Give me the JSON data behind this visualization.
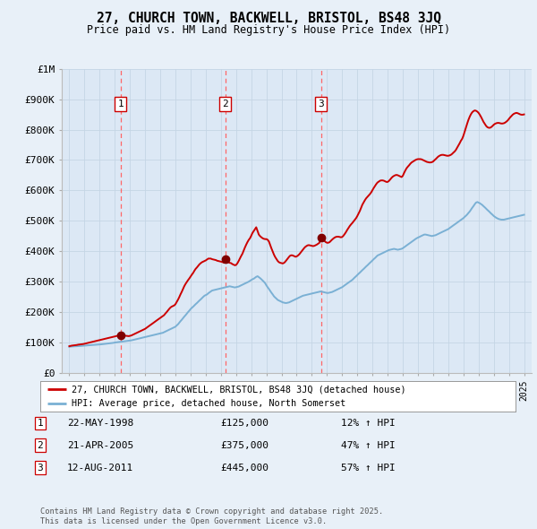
{
  "title": "27, CHURCH TOWN, BACKWELL, BRISTOL, BS48 3JQ",
  "subtitle": "Price paid vs. HM Land Registry's House Price Index (HPI)",
  "bg_color": "#e8f0f8",
  "plot_bg_color": "#dce8f5",
  "legend_line1": "27, CHURCH TOWN, BACKWELL, BRISTOL, BS48 3JQ (detached house)",
  "legend_line2": "HPI: Average price, detached house, North Somerset",
  "footer": "Contains HM Land Registry data © Crown copyright and database right 2025.\nThis data is licensed under the Open Government Licence v3.0.",
  "transactions": [
    {
      "num": 1,
      "date": "22-MAY-1998",
      "price": 125000,
      "hpi_pct": "12% ↑ HPI",
      "year": 1998.38
    },
    {
      "num": 2,
      "date": "21-APR-2005",
      "price": 375000,
      "hpi_pct": "47% ↑ HPI",
      "year": 2005.3
    },
    {
      "num": 3,
      "date": "12-AUG-2011",
      "price": 445000,
      "hpi_pct": "57% ↑ HPI",
      "year": 2011.61
    }
  ],
  "hpi_x": [
    1995.0,
    1995.08,
    1995.17,
    1995.25,
    1995.33,
    1995.42,
    1995.5,
    1995.58,
    1995.67,
    1995.75,
    1995.83,
    1995.92,
    1996.0,
    1996.08,
    1996.17,
    1996.25,
    1996.33,
    1996.42,
    1996.5,
    1996.58,
    1996.67,
    1996.75,
    1996.83,
    1996.92,
    1997.0,
    1997.08,
    1997.17,
    1997.25,
    1997.33,
    1997.42,
    1997.5,
    1997.58,
    1997.67,
    1997.75,
    1997.83,
    1997.92,
    1998.0,
    1998.08,
    1998.17,
    1998.25,
    1998.33,
    1998.42,
    1998.5,
    1998.58,
    1998.67,
    1998.75,
    1998.83,
    1998.92,
    1999.0,
    1999.08,
    1999.17,
    1999.25,
    1999.33,
    1999.42,
    1999.5,
    1999.58,
    1999.67,
    1999.75,
    1999.83,
    1999.92,
    2000.0,
    2000.08,
    2000.17,
    2000.25,
    2000.33,
    2000.42,
    2000.5,
    2000.58,
    2000.67,
    2000.75,
    2000.83,
    2000.92,
    2001.0,
    2001.08,
    2001.17,
    2001.25,
    2001.33,
    2001.42,
    2001.5,
    2001.58,
    2001.67,
    2001.75,
    2001.83,
    2001.92,
    2002.0,
    2002.08,
    2002.17,
    2002.25,
    2002.33,
    2002.42,
    2002.5,
    2002.58,
    2002.67,
    2002.75,
    2002.83,
    2002.92,
    2003.0,
    2003.08,
    2003.17,
    2003.25,
    2003.33,
    2003.42,
    2003.5,
    2003.58,
    2003.67,
    2003.75,
    2003.83,
    2003.92,
    2004.0,
    2004.08,
    2004.17,
    2004.25,
    2004.33,
    2004.42,
    2004.5,
    2004.58,
    2004.67,
    2004.75,
    2004.83,
    2004.92,
    2005.0,
    2005.08,
    2005.17,
    2005.25,
    2005.33,
    2005.42,
    2005.5,
    2005.58,
    2005.67,
    2005.75,
    2005.83,
    2005.92,
    2006.0,
    2006.08,
    2006.17,
    2006.25,
    2006.33,
    2006.42,
    2006.5,
    2006.58,
    2006.67,
    2006.75,
    2006.83,
    2006.92,
    2007.0,
    2007.08,
    2007.17,
    2007.25,
    2007.33,
    2007.42,
    2007.5,
    2007.58,
    2007.67,
    2007.75,
    2007.83,
    2007.92,
    2008.0,
    2008.08,
    2008.17,
    2008.25,
    2008.33,
    2008.42,
    2008.5,
    2008.58,
    2008.67,
    2008.75,
    2008.83,
    2008.92,
    2009.0,
    2009.08,
    2009.17,
    2009.25,
    2009.33,
    2009.42,
    2009.5,
    2009.58,
    2009.67,
    2009.75,
    2009.83,
    2009.92,
    2010.0,
    2010.08,
    2010.17,
    2010.25,
    2010.33,
    2010.42,
    2010.5,
    2010.58,
    2010.67,
    2010.75,
    2010.83,
    2010.92,
    2011.0,
    2011.08,
    2011.17,
    2011.25,
    2011.33,
    2011.42,
    2011.5,
    2011.58,
    2011.67,
    2011.75,
    2011.83,
    2011.92,
    2012.0,
    2012.08,
    2012.17,
    2012.25,
    2012.33,
    2012.42,
    2012.5,
    2012.58,
    2012.67,
    2012.75,
    2012.83,
    2012.92,
    2013.0,
    2013.08,
    2013.17,
    2013.25,
    2013.33,
    2013.42,
    2013.5,
    2013.58,
    2013.67,
    2013.75,
    2013.83,
    2013.92,
    2014.0,
    2014.08,
    2014.17,
    2014.25,
    2014.33,
    2014.42,
    2014.5,
    2014.58,
    2014.67,
    2014.75,
    2014.83,
    2014.92,
    2015.0,
    2015.08,
    2015.17,
    2015.25,
    2015.33,
    2015.42,
    2015.5,
    2015.58,
    2015.67,
    2015.75,
    2015.83,
    2015.92,
    2016.0,
    2016.08,
    2016.17,
    2016.25,
    2016.33,
    2016.42,
    2016.5,
    2016.58,
    2016.67,
    2016.75,
    2016.83,
    2016.92,
    2017.0,
    2017.08,
    2017.17,
    2017.25,
    2017.33,
    2017.42,
    2017.5,
    2017.58,
    2017.67,
    2017.75,
    2017.83,
    2017.92,
    2018.0,
    2018.08,
    2018.17,
    2018.25,
    2018.33,
    2018.42,
    2018.5,
    2018.58,
    2018.67,
    2018.75,
    2018.83,
    2018.92,
    2019.0,
    2019.08,
    2019.17,
    2019.25,
    2019.33,
    2019.42,
    2019.5,
    2019.58,
    2019.67,
    2019.75,
    2019.83,
    2019.92,
    2020.0,
    2020.08,
    2020.17,
    2020.25,
    2020.33,
    2020.42,
    2020.5,
    2020.58,
    2020.67,
    2020.75,
    2020.83,
    2020.92,
    2021.0,
    2021.08,
    2021.17,
    2021.25,
    2021.33,
    2021.42,
    2021.5,
    2021.58,
    2021.67,
    2021.75,
    2021.83,
    2021.92,
    2022.0,
    2022.08,
    2022.17,
    2022.25,
    2022.33,
    2022.42,
    2022.5,
    2022.58,
    2022.67,
    2022.75,
    2022.83,
    2022.92,
    2023.0,
    2023.08,
    2023.17,
    2023.25,
    2023.33,
    2023.42,
    2023.5,
    2023.58,
    2023.67,
    2023.75,
    2023.83,
    2023.92,
    2024.0,
    2024.08,
    2024.17,
    2024.25,
    2024.33,
    2024.42,
    2024.5,
    2024.58,
    2024.67,
    2024.75,
    2024.83,
    2024.92,
    2025.0
  ],
  "hpi_y": [
    86000,
    86500,
    87000,
    87200,
    87500,
    87800,
    88000,
    88200,
    88500,
    88700,
    89000,
    89300,
    89500,
    90000,
    90500,
    91000,
    91200,
    91500,
    91800,
    92000,
    92200,
    92500,
    92700,
    93000,
    93500,
    94000,
    94500,
    95000,
    95500,
    96000,
    96500,
    97000,
    97500,
    98000,
    98500,
    99000,
    100000,
    100500,
    101000,
    101500,
    102000,
    102500,
    103000,
    103500,
    104000,
    104500,
    105000,
    105500,
    106000,
    107000,
    108000,
    109000,
    110000,
    111000,
    112000,
    113000,
    114000,
    115000,
    116000,
    117000,
    118000,
    119000,
    120000,
    121000,
    122000,
    123000,
    124000,
    125000,
    126000,
    127000,
    128000,
    129000,
    130000,
    131000,
    132000,
    134000,
    136000,
    138000,
    140000,
    142000,
    144000,
    146000,
    148000,
    150000,
    152000,
    156000,
    160000,
    165000,
    170000,
    175000,
    180000,
    185000,
    190000,
    195000,
    200000,
    205000,
    210000,
    214000,
    218000,
    222000,
    226000,
    230000,
    234000,
    238000,
    242000,
    246000,
    250000,
    254000,
    256000,
    258000,
    262000,
    265000,
    268000,
    271000,
    272000,
    273000,
    274000,
    275000,
    276000,
    277000,
    278000,
    279000,
    280000,
    281000,
    282000,
    283000,
    284000,
    285000,
    284000,
    283000,
    282000,
    281000,
    282000,
    283000,
    284000,
    286000,
    288000,
    290000,
    292000,
    294000,
    296000,
    298000,
    300000,
    303000,
    306000,
    308000,
    310000,
    313000,
    316000,
    318000,
    315000,
    312000,
    308000,
    304000,
    300000,
    295000,
    288000,
    282000,
    276000,
    270000,
    264000,
    258000,
    252000,
    248000,
    244000,
    240000,
    238000,
    236000,
    234000,
    232000,
    231000,
    230000,
    230000,
    231000,
    232000,
    234000,
    236000,
    238000,
    240000,
    242000,
    244000,
    246000,
    248000,
    250000,
    252000,
    254000,
    255000,
    256000,
    257000,
    258000,
    259000,
    260000,
    261000,
    262000,
    263000,
    264000,
    265000,
    266000,
    267000,
    268000,
    267000,
    266000,
    265000,
    264000,
    263000,
    263000,
    264000,
    265000,
    266000,
    268000,
    270000,
    272000,
    274000,
    276000,
    278000,
    280000,
    282000,
    285000,
    288000,
    291000,
    294000,
    297000,
    300000,
    303000,
    306000,
    310000,
    314000,
    318000,
    322000,
    326000,
    330000,
    334000,
    338000,
    342000,
    346000,
    350000,
    354000,
    358000,
    362000,
    366000,
    370000,
    374000,
    378000,
    382000,
    386000,
    388000,
    390000,
    392000,
    394000,
    396000,
    398000,
    400000,
    402000,
    404000,
    405000,
    406000,
    407000,
    408000,
    407000,
    406000,
    405000,
    406000,
    407000,
    408000,
    410000,
    413000,
    416000,
    419000,
    422000,
    425000,
    428000,
    431000,
    434000,
    437000,
    440000,
    443000,
    445000,
    447000,
    449000,
    451000,
    453000,
    455000,
    455000,
    454000,
    453000,
    452000,
    451000,
    450000,
    451000,
    452000,
    453000,
    455000,
    457000,
    459000,
    461000,
    463000,
    465000,
    467000,
    469000,
    471000,
    473000,
    476000,
    479000,
    482000,
    485000,
    488000,
    491000,
    494000,
    497000,
    500000,
    503000,
    506000,
    509000,
    513000,
    517000,
    521000,
    526000,
    531000,
    537000,
    543000,
    549000,
    555000,
    560000,
    562000,
    560000,
    558000,
    555000,
    552000,
    548000,
    544000,
    540000,
    536000,
    532000,
    528000,
    524000,
    520000,
    516000,
    513000,
    510000,
    508000,
    506000,
    505000,
    504000,
    504000,
    504000,
    505000,
    506000,
    507000,
    508000,
    509000,
    510000,
    511000,
    512000,
    513000,
    514000,
    515000,
    516000,
    517000,
    518000,
    519000,
    520000
  ],
  "price_x": [
    1995.0,
    1995.08,
    1995.17,
    1995.25,
    1995.33,
    1995.42,
    1995.5,
    1995.58,
    1995.67,
    1995.75,
    1995.83,
    1995.92,
    1996.0,
    1996.08,
    1996.17,
    1996.25,
    1996.33,
    1996.42,
    1996.5,
    1996.58,
    1996.67,
    1996.75,
    1996.83,
    1996.92,
    1997.0,
    1997.08,
    1997.17,
    1997.25,
    1997.33,
    1997.42,
    1997.5,
    1997.58,
    1997.67,
    1997.75,
    1997.83,
    1997.92,
    1998.0,
    1998.08,
    1998.17,
    1998.25,
    1998.33,
    1998.38,
    1998.42,
    1998.58,
    1998.67,
    1998.75,
    1998.83,
    1998.92,
    1999.0,
    1999.08,
    1999.17,
    1999.25,
    1999.33,
    1999.42,
    1999.5,
    1999.58,
    1999.67,
    1999.75,
    1999.83,
    1999.92,
    2000.0,
    2000.08,
    2000.17,
    2000.25,
    2000.33,
    2000.42,
    2000.5,
    2000.58,
    2000.67,
    2000.75,
    2000.83,
    2000.92,
    2001.0,
    2001.08,
    2001.17,
    2001.25,
    2001.33,
    2001.42,
    2001.5,
    2001.58,
    2001.67,
    2001.75,
    2001.83,
    2001.92,
    2002.0,
    2002.08,
    2002.17,
    2002.25,
    2002.33,
    2002.42,
    2002.5,
    2002.58,
    2002.67,
    2002.75,
    2002.83,
    2002.92,
    2003.0,
    2003.08,
    2003.17,
    2003.25,
    2003.33,
    2003.42,
    2003.5,
    2003.58,
    2003.67,
    2003.75,
    2003.83,
    2003.92,
    2004.0,
    2004.08,
    2004.17,
    2004.25,
    2004.33,
    2004.42,
    2004.5,
    2004.58,
    2004.67,
    2004.75,
    2004.83,
    2004.92,
    2005.0,
    2005.08,
    2005.17,
    2005.25,
    2005.3,
    2005.42,
    2005.5,
    2005.58,
    2005.67,
    2005.75,
    2005.83,
    2005.92,
    2006.0,
    2006.08,
    2006.17,
    2006.25,
    2006.33,
    2006.42,
    2006.5,
    2006.58,
    2006.67,
    2006.75,
    2006.83,
    2006.92,
    2007.0,
    2007.08,
    2007.17,
    2007.25,
    2007.33,
    2007.42,
    2007.5,
    2007.58,
    2007.67,
    2007.75,
    2007.83,
    2007.92,
    2008.0,
    2008.08,
    2008.17,
    2008.25,
    2008.33,
    2008.42,
    2008.5,
    2008.58,
    2008.67,
    2008.75,
    2008.83,
    2008.92,
    2009.0,
    2009.08,
    2009.17,
    2009.25,
    2009.33,
    2009.42,
    2009.5,
    2009.58,
    2009.67,
    2009.75,
    2009.83,
    2009.92,
    2010.0,
    2010.08,
    2010.17,
    2010.25,
    2010.33,
    2010.42,
    2010.5,
    2010.58,
    2010.67,
    2010.75,
    2010.83,
    2010.92,
    2011.0,
    2011.08,
    2011.17,
    2011.25,
    2011.33,
    2011.42,
    2011.5,
    2011.61,
    2011.67,
    2011.75,
    2011.83,
    2011.92,
    2012.0,
    2012.08,
    2012.17,
    2012.25,
    2012.33,
    2012.42,
    2012.5,
    2012.58,
    2012.67,
    2012.75,
    2012.83,
    2012.92,
    2013.0,
    2013.08,
    2013.17,
    2013.25,
    2013.33,
    2013.42,
    2013.5,
    2013.58,
    2013.67,
    2013.75,
    2013.83,
    2013.92,
    2014.0,
    2014.08,
    2014.17,
    2014.25,
    2014.33,
    2014.42,
    2014.5,
    2014.58,
    2014.67,
    2014.75,
    2014.83,
    2014.92,
    2015.0,
    2015.08,
    2015.17,
    2015.25,
    2015.33,
    2015.42,
    2015.5,
    2015.58,
    2015.67,
    2015.75,
    2015.83,
    2015.92,
    2016.0,
    2016.08,
    2016.17,
    2016.25,
    2016.33,
    2016.42,
    2016.5,
    2016.58,
    2016.67,
    2016.75,
    2016.83,
    2016.92,
    2017.0,
    2017.08,
    2017.17,
    2017.25,
    2017.33,
    2017.42,
    2017.5,
    2017.58,
    2017.67,
    2017.75,
    2017.83,
    2017.92,
    2018.0,
    2018.08,
    2018.17,
    2018.25,
    2018.33,
    2018.42,
    2018.5,
    2018.58,
    2018.67,
    2018.75,
    2018.83,
    2018.92,
    2019.0,
    2019.08,
    2019.17,
    2019.25,
    2019.33,
    2019.42,
    2019.5,
    2019.58,
    2019.67,
    2019.75,
    2019.83,
    2019.92,
    2020.0,
    2020.08,
    2020.17,
    2020.25,
    2020.33,
    2020.42,
    2020.5,
    2020.58,
    2020.67,
    2020.75,
    2020.83,
    2020.92,
    2021.0,
    2021.08,
    2021.17,
    2021.25,
    2021.33,
    2021.42,
    2021.5,
    2021.58,
    2021.67,
    2021.75,
    2021.83,
    2021.92,
    2022.0,
    2022.08,
    2022.17,
    2022.25,
    2022.33,
    2022.42,
    2022.5,
    2022.58,
    2022.67,
    2022.75,
    2022.83,
    2022.92,
    2023.0,
    2023.08,
    2023.17,
    2023.25,
    2023.33,
    2023.42,
    2023.5,
    2023.58,
    2023.67,
    2023.75,
    2023.83,
    2023.92,
    2024.0,
    2024.08,
    2024.17,
    2024.25,
    2024.33,
    2024.42,
    2024.5,
    2024.58,
    2024.67,
    2024.75,
    2024.83,
    2024.92,
    2025.0
  ],
  "price_y": [
    88000,
    89000,
    90000,
    90500,
    91000,
    91500,
    92000,
    93000,
    93500,
    94000,
    94500,
    95000,
    96000,
    97000,
    98000,
    99000,
    100000,
    101000,
    102000,
    103000,
    104000,
    105000,
    106000,
    107000,
    108000,
    109000,
    110000,
    111000,
    112000,
    113000,
    114000,
    115000,
    116000,
    117000,
    118000,
    119000,
    120000,
    121000,
    122000,
    123000,
    124000,
    125000,
    124000,
    123000,
    122500,
    122000,
    121500,
    121000,
    122000,
    123000,
    125000,
    127000,
    129000,
    131000,
    133000,
    135000,
    137000,
    139000,
    141000,
    143000,
    145000,
    148000,
    151000,
    154000,
    157000,
    160000,
    163000,
    166000,
    169000,
    172000,
    175000,
    178000,
    181000,
    184000,
    187000,
    190000,
    195000,
    200000,
    205000,
    210000,
    215000,
    218000,
    220000,
    222000,
    226000,
    233000,
    241000,
    249000,
    258000,
    267000,
    276000,
    285000,
    293000,
    299000,
    305000,
    311000,
    317000,
    323000,
    329000,
    336000,
    342000,
    347000,
    352000,
    357000,
    361000,
    364000,
    366000,
    368000,
    370000,
    373000,
    376000,
    376000,
    376000,
    374000,
    373000,
    372000,
    371000,
    369000,
    368000,
    367000,
    366000,
    365000,
    363000,
    362000,
    375000,
    368000,
    364000,
    362000,
    361000,
    358000,
    356000,
    354000,
    355000,
    360000,
    368000,
    376000,
    384000,
    392000,
    402000,
    412000,
    422000,
    430000,
    437000,
    443000,
    451000,
    460000,
    467000,
    473000,
    479000,
    466000,
    455000,
    450000,
    446000,
    443000,
    441000,
    440000,
    440000,
    438000,
    432000,
    421000,
    410000,
    399000,
    389000,
    381000,
    374000,
    368000,
    364000,
    362000,
    361000,
    360000,
    362000,
    366000,
    371000,
    377000,
    382000,
    386000,
    387000,
    386000,
    384000,
    382000,
    383000,
    386000,
    390000,
    395000,
    400000,
    406000,
    411000,
    415000,
    418000,
    420000,
    420000,
    419000,
    418000,
    417000,
    418000,
    420000,
    422000,
    425000,
    428000,
    445000,
    442000,
    438000,
    434000,
    430000,
    428000,
    428000,
    430000,
    434000,
    438000,
    442000,
    445000,
    447000,
    448000,
    448000,
    447000,
    446000,
    447000,
    451000,
    457000,
    463000,
    470000,
    477000,
    483000,
    488000,
    493000,
    498000,
    503000,
    509000,
    516000,
    524000,
    533000,
    543000,
    553000,
    561000,
    568000,
    574000,
    579000,
    583000,
    588000,
    594000,
    601000,
    608000,
    615000,
    621000,
    626000,
    629000,
    632000,
    633000,
    633000,
    632000,
    630000,
    628000,
    628000,
    631000,
    636000,
    641000,
    645000,
    648000,
    650000,
    651000,
    650000,
    648000,
    646000,
    644000,
    648000,
    657000,
    666000,
    673000,
    678000,
    683000,
    688000,
    692000,
    695000,
    698000,
    700000,
    702000,
    703000,
    703000,
    703000,
    702000,
    700000,
    698000,
    696000,
    694000,
    693000,
    692000,
    692000,
    693000,
    695000,
    699000,
    703000,
    707000,
    711000,
    714000,
    716000,
    717000,
    717000,
    716000,
    715000,
    714000,
    714000,
    715000,
    717000,
    720000,
    724000,
    728000,
    733000,
    740000,
    748000,
    755000,
    763000,
    770000,
    780000,
    793000,
    807000,
    820000,
    832000,
    843000,
    851000,
    857000,
    861000,
    863000,
    862000,
    859000,
    855000,
    849000,
    841000,
    833000,
    825000,
    818000,
    812000,
    808000,
    806000,
    806000,
    808000,
    812000,
    816000,
    819000,
    821000,
    822000,
    822000,
    821000,
    820000,
    820000,
    821000,
    823000,
    826000,
    830000,
    835000,
    840000,
    845000,
    849000,
    852000,
    854000,
    855000,
    854000,
    852000,
    850000,
    849000,
    849000,
    850000
  ],
  "ylim": [
    0,
    1000000
  ],
  "yticks": [
    0,
    100000,
    200000,
    300000,
    400000,
    500000,
    600000,
    700000,
    800000,
    900000,
    1000000
  ],
  "ytick_labels": [
    "£0",
    "£100K",
    "£200K",
    "£300K",
    "£400K",
    "£500K",
    "£600K",
    "£700K",
    "£800K",
    "£900K",
    "£1M"
  ],
  "xlim": [
    1994.5,
    2025.5
  ],
  "xticks": [
    1995,
    1996,
    1997,
    1998,
    1999,
    2000,
    2001,
    2002,
    2003,
    2004,
    2005,
    2006,
    2007,
    2008,
    2009,
    2010,
    2011,
    2012,
    2013,
    2014,
    2015,
    2016,
    2017,
    2018,
    2019,
    2020,
    2021,
    2022,
    2023,
    2024,
    2025
  ],
  "line_color_price": "#cc0000",
  "line_color_hpi": "#7ab0d4",
  "marker_color": "#800000",
  "vline_color": "#ff6666",
  "grid_color": "#c5d5e5"
}
